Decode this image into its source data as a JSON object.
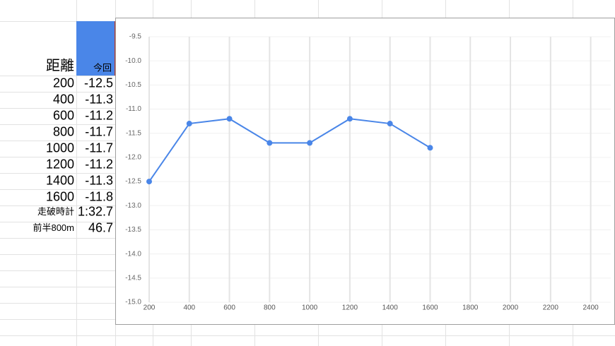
{
  "table": {
    "header": [
      "距離",
      "今回"
    ],
    "rows": [
      [
        200,
        -12.5
      ],
      [
        400,
        -11.3
      ],
      [
        600,
        -11.2
      ],
      [
        800,
        -11.7
      ],
      [
        1000,
        -11.7
      ],
      [
        1200,
        -11.2
      ],
      [
        1400,
        -11.3
      ],
      [
        1600,
        -11.8
      ],
      [
        "走破時計",
        "1:32.7"
      ],
      [
        "前半800m",
        46.7
      ]
    ]
  },
  "chart_data": {
    "type": "line",
    "x": [
      200,
      400,
      600,
      800,
      1000,
      1200,
      1400,
      1600
    ],
    "series": [
      {
        "color": "#4a86e8",
        "values": [
          -12.5,
          -11.3,
          -11.2,
          -11.7,
          -11.7,
          -11.2,
          -11.3,
          -11.8
        ]
      }
    ],
    "xlim": [
      200,
      2500
    ],
    "xticks": [
      200,
      400,
      600,
      800,
      1000,
      1200,
      1400,
      1600,
      1800,
      2000,
      2200,
      2400
    ],
    "ylim": [
      -15,
      -9.5
    ],
    "yticks": [
      -9.5,
      {
        "value": -10,
        "label": "-10.0"
      },
      -10.5,
      {
        "value": -11,
        "label": "-11.0"
      },
      -11.5,
      {
        "value": -12,
        "label": "-12.0"
      },
      -12.5,
      {
        "value": -13,
        "label": "-13.0"
      },
      -13.5,
      {
        "value": -14,
        "label": "-14.0"
      },
      -14.5,
      {
        "value": -15,
        "label": "-15.0"
      }
    ],
    "grid": true
  }
}
